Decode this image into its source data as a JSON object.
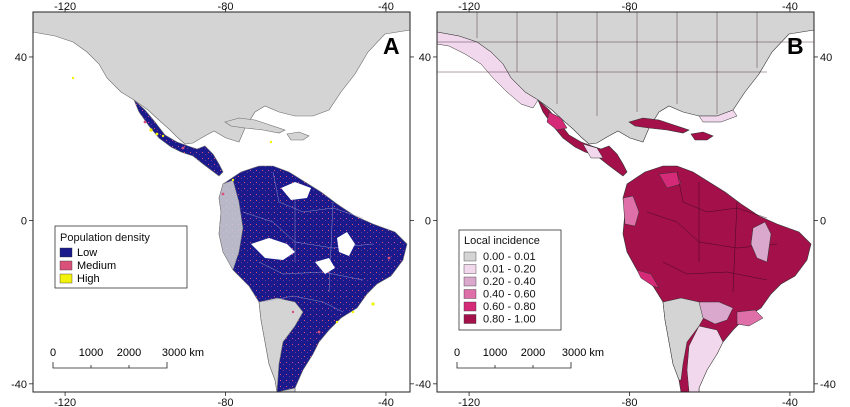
{
  "axes": {
    "x_ticks": [
      "-120",
      "-80",
      "-40"
    ],
    "y_ticks": [
      "40",
      "0",
      "-40"
    ],
    "x_tick_values": [
      -120,
      -80,
      -40
    ],
    "y_tick_values": [
      40,
      0,
      -40
    ],
    "lon_range": [
      -128,
      -34
    ],
    "lat_range": [
      -42,
      51
    ]
  },
  "panels": [
    {
      "id": "A",
      "label": "A",
      "legend": {
        "title": "Population density",
        "items": [
          {
            "label": "Low",
            "color": "#1a1a8c"
          },
          {
            "label": "Medium",
            "color": "#d9517a"
          },
          {
            "label": "High",
            "color": "#f2f20a"
          }
        ]
      },
      "scalebar": {
        "ticks": [
          "0",
          "1000",
          "2000",
          "3000 km"
        ]
      }
    },
    {
      "id": "B",
      "label": "B",
      "legend": {
        "title": "Local incidence",
        "items": [
          {
            "label": "0.00 - 0.01",
            "color": "#d4d4d4"
          },
          {
            "label": "0.01 - 0.20",
            "color": "#f2d8ec"
          },
          {
            "label": "0.20 - 0.40",
            "color": "#d9a8cc"
          },
          {
            "label": "0.40 - 0.60",
            "color": "#df6fa8"
          },
          {
            "label": "0.60 - 0.80",
            "color": "#d42a78"
          },
          {
            "label": "0.80 - 1.00",
            "color": "#a3104a"
          }
        ]
      },
      "scalebar": {
        "ticks": [
          "0",
          "1000",
          "2000",
          "3000 km"
        ]
      }
    }
  ],
  "colors": {
    "land_outside": "#d4d4d4",
    "water": "#ffffff",
    "border": "#555555",
    "dense_a": "#1a1a8c",
    "dense_b": "#a3104a",
    "medium_b": "#d42a78",
    "light_b": "#f2d8ec",
    "mid_b": "#df6fa8"
  }
}
